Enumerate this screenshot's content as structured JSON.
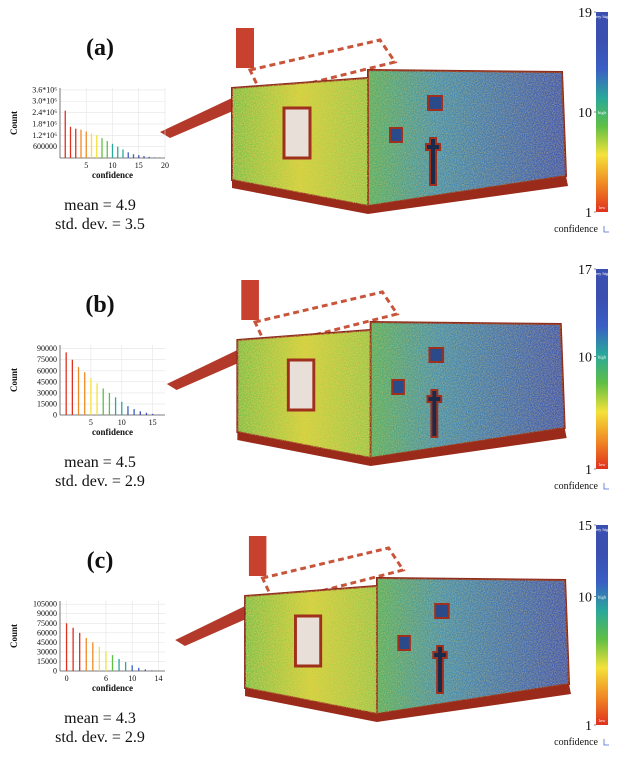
{
  "chart_data": [
    {
      "type": "histogram",
      "panel_label": "(a)",
      "x_label": "confidence",
      "y_label": "Count",
      "x": [
        1,
        2,
        3,
        4,
        5,
        6,
        7,
        8,
        9,
        10,
        11,
        12,
        13,
        14,
        15,
        16,
        17,
        18,
        19
      ],
      "values": [
        2500000,
        1650000,
        1550000,
        1500000,
        1400000,
        1300000,
        1200000,
        1050000,
        900000,
        750000,
        600000,
        450000,
        300000,
        200000,
        150000,
        100000,
        60000,
        30000,
        15000
      ],
      "xlim": [
        0,
        20
      ],
      "xticks": [
        5,
        10,
        15,
        20
      ],
      "ylim": [
        0,
        3700000
      ],
      "yticks": [
        600000,
        {
          "value": 1200000,
          "label": "1.2*10⁶"
        },
        {
          "value": 1800000,
          "label": "1.8*10⁶"
        },
        {
          "value": 2400000,
          "label": "2.4*10⁶"
        },
        {
          "value": 3000000,
          "label": "3.0*10⁶"
        },
        {
          "value": 3600000,
          "label": "3.6*10⁶"
        }
      ],
      "grid": true,
      "annotations": [
        "mean = 4.9",
        "std. dev. = 3.5"
      ],
      "colorbar": {
        "title": "confidence",
        "ylim": [
          1,
          19
        ],
        "yticks": [
          1,
          10,
          19
        ],
        "top_label": "very high",
        "mid_label": "high",
        "bottom_label": "low",
        "colors": [
          "#e0301e",
          "#f08a24",
          "#f4e23a",
          "#5fbf45",
          "#2aa89a",
          "#3a5fc4",
          "#3a4fb0",
          "#3a4fb0"
        ]
      }
    },
    {
      "type": "histogram",
      "panel_label": "(b)",
      "x_label": "confidence",
      "y_label": "Count",
      "x": [
        1,
        2,
        3,
        4,
        5,
        6,
        7,
        8,
        9,
        10,
        11,
        12,
        13,
        14,
        15,
        16
      ],
      "values": [
        85000,
        75000,
        65000,
        58000,
        50000,
        43000,
        36000,
        30000,
        24000,
        18000,
        12000,
        8000,
        5000,
        3000,
        1500,
        600
      ],
      "xlim": [
        0,
        17
      ],
      "xticks": [
        5,
        10,
        15
      ],
      "ylim": [
        0,
        95000
      ],
      "yticks": [
        0,
        15000,
        30000,
        45000,
        60000,
        75000,
        90000
      ],
      "grid": true,
      "annotations": [
        "mean = 4.5",
        "std. dev. = 2.9"
      ],
      "colorbar": {
        "title": "confidence",
        "ylim": [
          1,
          17
        ],
        "yticks": [
          1,
          10,
          17
        ],
        "top_label": "very high",
        "mid_label": "high",
        "bottom_label": "low",
        "colors": [
          "#e0301e",
          "#f08a24",
          "#f4e23a",
          "#5fbf45",
          "#2aa89a",
          "#3a5fc4",
          "#3a4fb0",
          "#3a4fb0"
        ]
      }
    },
    {
      "type": "histogram",
      "panel_label": "(c)",
      "x_label": "confidence",
      "y_label": "Count",
      "x": [
        0,
        1,
        2,
        3,
        4,
        5,
        6,
        7,
        8,
        9,
        10,
        11,
        12,
        13
      ],
      "values": [
        75000,
        68000,
        60000,
        52000,
        45000,
        38000,
        31000,
        25000,
        19000,
        14000,
        9000,
        5000,
        2500,
        1000
      ],
      "xlim": [
        -1,
        15
      ],
      "xticks": [
        0,
        6,
        10,
        14
      ],
      "ylim": [
        0,
        110000
      ],
      "yticks": [
        0,
        15000,
        30000,
        45000,
        60000,
        75000,
        90000,
        105000
      ],
      "grid": true,
      "annotations": [
        "mean = 4.3",
        "std. dev. = 2.9"
      ],
      "colorbar": {
        "title": "confidence",
        "ylim": [
          1,
          15
        ],
        "yticks": [
          1,
          10,
          15
        ],
        "top_label": "very high",
        "mid_label": "high",
        "bottom_label": "low",
        "colors": [
          "#e0301e",
          "#f08a24",
          "#f4e23a",
          "#5fbf45",
          "#2aa89a",
          "#3a5fc4",
          "#3a4fb0",
          "#3a4fb0"
        ]
      }
    }
  ]
}
